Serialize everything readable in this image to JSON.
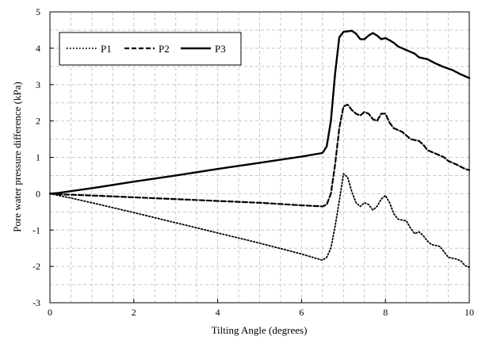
{
  "chart_data": {
    "type": "line",
    "title": "",
    "xlabel": "Tilting Angle (degrees)",
    "ylabel": "Pore water pressure difference (kPa)",
    "xlim": [
      0,
      10
    ],
    "ylim": [
      -3,
      5
    ],
    "x_ticks": [
      0,
      2,
      4,
      6,
      8,
      10
    ],
    "y_ticks": [
      -3,
      -2,
      -1,
      0,
      1,
      2,
      3,
      4,
      5
    ],
    "grid": true,
    "legend_position": "top-left",
    "series": [
      {
        "name": "P1",
        "style": "dotted",
        "color": "#000000",
        "points": [
          [
            0,
            0
          ],
          [
            0.5,
            -0.12
          ],
          [
            1,
            -0.25
          ],
          [
            2,
            -0.52
          ],
          [
            3,
            -0.8
          ],
          [
            4,
            -1.08
          ],
          [
            5,
            -1.36
          ],
          [
            6,
            -1.66
          ],
          [
            6.5,
            -1.83
          ],
          [
            6.6,
            -1.75
          ],
          [
            6.7,
            -1.5
          ],
          [
            6.8,
            -0.9
          ],
          [
            6.9,
            -0.2
          ],
          [
            7.0,
            0.55
          ],
          [
            7.1,
            0.45
          ],
          [
            7.2,
            0.05
          ],
          [
            7.3,
            -0.25
          ],
          [
            7.4,
            -0.35
          ],
          [
            7.5,
            -0.25
          ],
          [
            7.6,
            -0.3
          ],
          [
            7.7,
            -0.45
          ],
          [
            7.8,
            -0.35
          ],
          [
            7.9,
            -0.15
          ],
          [
            8.0,
            -0.05
          ],
          [
            8.1,
            -0.25
          ],
          [
            8.2,
            -0.55
          ],
          [
            8.3,
            -0.7
          ],
          [
            8.5,
            -0.75
          ],
          [
            8.6,
            -0.95
          ],
          [
            8.7,
            -1.1
          ],
          [
            8.8,
            -1.05
          ],
          [
            8.9,
            -1.15
          ],
          [
            9.0,
            -1.3
          ],
          [
            9.1,
            -1.4
          ],
          [
            9.3,
            -1.45
          ],
          [
            9.4,
            -1.6
          ],
          [
            9.5,
            -1.75
          ],
          [
            9.7,
            -1.8
          ],
          [
            9.8,
            -1.85
          ],
          [
            9.9,
            -1.98
          ],
          [
            10,
            -2.02
          ]
        ]
      },
      {
        "name": "P2",
        "style": "dashed",
        "color": "#000000",
        "points": [
          [
            0,
            0
          ],
          [
            0.3,
            -0.02
          ],
          [
            1,
            -0.05
          ],
          [
            2,
            -0.1
          ],
          [
            3,
            -0.15
          ],
          [
            4,
            -0.2
          ],
          [
            5,
            -0.25
          ],
          [
            6,
            -0.32
          ],
          [
            6.5,
            -0.35
          ],
          [
            6.6,
            -0.3
          ],
          [
            6.7,
            0.0
          ],
          [
            6.8,
            0.8
          ],
          [
            6.9,
            1.8
          ],
          [
            7.0,
            2.4
          ],
          [
            7.1,
            2.45
          ],
          [
            7.2,
            2.3
          ],
          [
            7.3,
            2.2
          ],
          [
            7.4,
            2.15
          ],
          [
            7.5,
            2.25
          ],
          [
            7.6,
            2.2
          ],
          [
            7.7,
            2.05
          ],
          [
            7.8,
            2.0
          ],
          [
            7.9,
            2.2
          ],
          [
            8.0,
            2.2
          ],
          [
            8.1,
            1.95
          ],
          [
            8.2,
            1.8
          ],
          [
            8.4,
            1.7
          ],
          [
            8.6,
            1.5
          ],
          [
            8.8,
            1.45
          ],
          [
            8.9,
            1.35
          ],
          [
            9.0,
            1.2
          ],
          [
            9.2,
            1.1
          ],
          [
            9.4,
            1.0
          ],
          [
            9.5,
            0.9
          ],
          [
            9.7,
            0.8
          ],
          [
            9.9,
            0.68
          ],
          [
            10,
            0.65
          ]
        ]
      },
      {
        "name": "P3",
        "style": "solid",
        "color": "#000000",
        "points": [
          [
            0,
            0
          ],
          [
            0.2,
            0.02
          ],
          [
            1,
            0.15
          ],
          [
            2,
            0.33
          ],
          [
            3,
            0.5
          ],
          [
            4,
            0.68
          ],
          [
            5,
            0.85
          ],
          [
            6,
            1.02
          ],
          [
            6.5,
            1.12
          ],
          [
            6.6,
            1.3
          ],
          [
            6.7,
            2.0
          ],
          [
            6.8,
            3.3
          ],
          [
            6.9,
            4.3
          ],
          [
            7.0,
            4.45
          ],
          [
            7.2,
            4.48
          ],
          [
            7.3,
            4.4
          ],
          [
            7.4,
            4.25
          ],
          [
            7.5,
            4.25
          ],
          [
            7.6,
            4.35
          ],
          [
            7.7,
            4.42
          ],
          [
            7.8,
            4.35
          ],
          [
            7.9,
            4.25
          ],
          [
            8.0,
            4.28
          ],
          [
            8.1,
            4.22
          ],
          [
            8.2,
            4.15
          ],
          [
            8.3,
            4.05
          ],
          [
            8.5,
            3.95
          ],
          [
            8.7,
            3.85
          ],
          [
            8.8,
            3.75
          ],
          [
            9.0,
            3.7
          ],
          [
            9.2,
            3.58
          ],
          [
            9.4,
            3.48
          ],
          [
            9.6,
            3.4
          ],
          [
            9.8,
            3.28
          ],
          [
            10,
            3.18
          ]
        ]
      }
    ]
  }
}
